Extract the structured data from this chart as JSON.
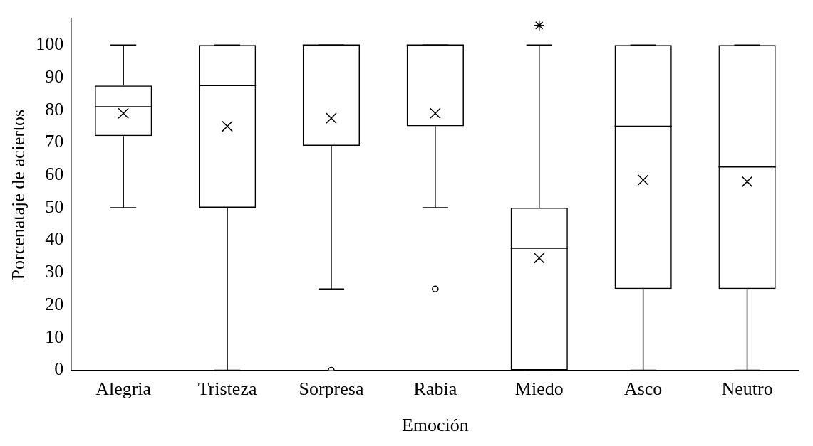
{
  "chart_data": {
    "type": "box",
    "xlabel": "Emoción",
    "ylabel": "Porcenataje de aciertos",
    "categories": [
      "Alegria",
      "Tristeza",
      "Sorpresa",
      "Rabia",
      "Miedo",
      "Asco",
      "Neutro"
    ],
    "boxes": [
      {
        "low": 50,
        "q1": 72,
        "median": 81,
        "q3": 87.5,
        "high": 100,
        "mean": 79
      },
      {
        "low": 0,
        "q1": 50,
        "median": 87.5,
        "q3": 100,
        "high": 100,
        "mean": 75
      },
      {
        "low": 25,
        "q1": 69,
        "median": 100,
        "q3": 100,
        "high": 100,
        "mean": 77.5
      },
      {
        "low": 50,
        "q1": 75,
        "median": 100,
        "q3": 100,
        "high": 100,
        "mean": 79
      },
      {
        "low": 0,
        "q1": 0,
        "median": 37.5,
        "q3": 50,
        "high": 100,
        "mean": 34.5
      },
      {
        "low": 0,
        "q1": 25,
        "median": 75,
        "q3": 100,
        "high": 100,
        "mean": 58.5
      },
      {
        "low": 0,
        "q1": 25,
        "median": 62.5,
        "q3": 100,
        "high": 100,
        "mean": 58
      }
    ],
    "series": [
      {
        "type": "scatter",
        "marker": "circle",
        "color": "#000000",
        "x": [
          "Sorpresa",
          "Rabia"
        ],
        "values": [
          0,
          25
        ]
      },
      {
        "type": "scatter",
        "marker": "cross",
        "color": "#000000",
        "x": [
          "Miedo"
        ],
        "values": [
          106
        ]
      }
    ],
    "marker": "cross",
    "color": "#000000",
    "ylim": [
      0,
      108
    ],
    "yticks": [
      0,
      10,
      20,
      30,
      40,
      50,
      60,
      70,
      80,
      90,
      100
    ],
    "grid": false,
    "legend": false
  }
}
